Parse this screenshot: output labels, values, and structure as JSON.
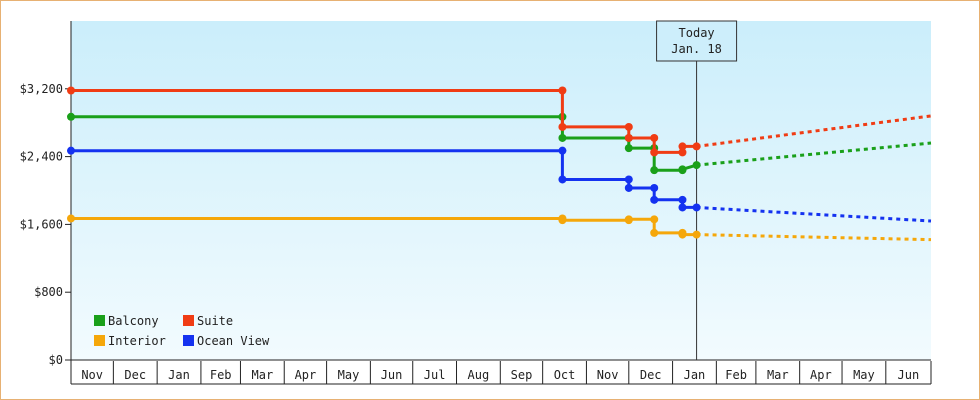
{
  "chart_data": {
    "type": "line",
    "title": "",
    "xlabel": "",
    "ylabel": "",
    "ylim": [
      0,
      4000
    ],
    "yticks": [
      0,
      800,
      1600,
      2400,
      3200
    ],
    "ytick_labels": [
      "$0",
      "$800",
      "$1,600",
      "$2,400",
      "$3,200"
    ],
    "x_domain_days": [
      0,
      609
    ],
    "month_labels": [
      "Nov",
      "Dec",
      "Jan",
      "Feb",
      "Mar",
      "Apr",
      "May",
      "Jun",
      "Jul",
      "Aug",
      "Sep",
      "Oct",
      "Nov",
      "Dec",
      "Jan",
      "Feb",
      "Mar",
      "Apr",
      "May",
      "Jun"
    ],
    "month_start_days": [
      0,
      30,
      61,
      92,
      120,
      151,
      181,
      212,
      242,
      273,
      304,
      334,
      365,
      395,
      426,
      457,
      485,
      516,
      546,
      577
    ],
    "today": {
      "line1": "Today",
      "line2": "Jan. 18",
      "day": 443
    },
    "legend_position": "bottom-left",
    "grid": false,
    "series": [
      {
        "name": "Balcony",
        "color": "#1aa01a",
        "points": [
          [
            0,
            2870
          ],
          [
            348,
            2870
          ],
          [
            348,
            2620
          ],
          [
            395,
            2620
          ],
          [
            395,
            2500
          ],
          [
            413,
            2500
          ],
          [
            413,
            2240
          ],
          [
            433,
            2240
          ],
          [
            433,
            2250
          ],
          [
            443,
            2300
          ]
        ],
        "forecast": [
          [
            443,
            2300
          ],
          [
            609,
            2560
          ]
        ]
      },
      {
        "name": "Suite",
        "color": "#f03c14",
        "points": [
          [
            0,
            3180
          ],
          [
            348,
            3180
          ],
          [
            348,
            2750
          ],
          [
            395,
            2750
          ],
          [
            395,
            2620
          ],
          [
            413,
            2620
          ],
          [
            413,
            2450
          ],
          [
            433,
            2450
          ],
          [
            433,
            2520
          ],
          [
            443,
            2520
          ]
        ],
        "forecast": [
          [
            443,
            2520
          ],
          [
            609,
            2880
          ]
        ]
      },
      {
        "name": "Interior",
        "color": "#f5a70a",
        "points": [
          [
            0,
            1670
          ],
          [
            348,
            1670
          ],
          [
            348,
            1650
          ],
          [
            395,
            1650
          ],
          [
            395,
            1660
          ],
          [
            413,
            1660
          ],
          [
            413,
            1500
          ],
          [
            433,
            1500
          ],
          [
            433,
            1480
          ],
          [
            443,
            1480
          ]
        ],
        "forecast": [
          [
            443,
            1480
          ],
          [
            609,
            1420
          ]
        ]
      },
      {
        "name": "Ocean View",
        "color": "#1432f0",
        "points": [
          [
            0,
            2470
          ],
          [
            348,
            2470
          ],
          [
            348,
            2130
          ],
          [
            395,
            2130
          ],
          [
            395,
            2030
          ],
          [
            413,
            2030
          ],
          [
            413,
            1890
          ],
          [
            433,
            1890
          ],
          [
            433,
            1800
          ],
          [
            443,
            1800
          ]
        ],
        "forecast": [
          [
            443,
            1800
          ],
          [
            609,
            1640
          ]
        ]
      }
    ],
    "legend_order": [
      "Balcony",
      "Suite",
      "Interior",
      "Ocean View"
    ]
  }
}
